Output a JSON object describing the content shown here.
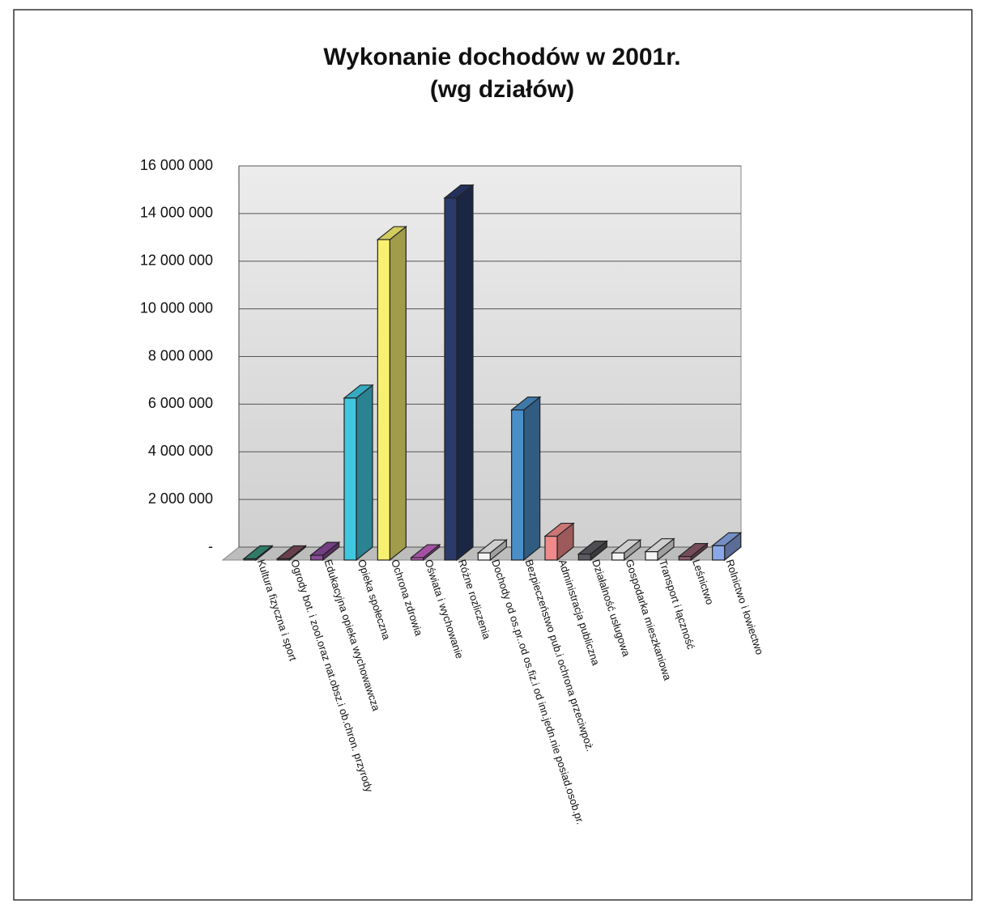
{
  "chart_data": {
    "type": "bar3d",
    "title": "Wykonanie dochodów w 2001r.",
    "subtitle": "(wg działów)",
    "categories": [
      "Kultura fizyczna i sport",
      "Ogrody bot. i zool.oraz nat.obsz.i ob.chron. przyrody",
      "Edukacyjna opieka wychowawcza",
      "Opieka społeczna",
      "Ochrona zdrowia",
      "Oświata i wychowanie",
      "Różne rozliczenia",
      "Dochody od os.pr..od os.fiz.i od inn.jedn.nie posiad.osob.pr.",
      "Bezpieczeństwo pub.i ochrona przeciwpoż.",
      "Administracja publiczna",
      "Działalność usługowa",
      "Gospodarka mieszkaniowa",
      "Transport i łączność",
      "Leśnictwo",
      "Rolnictwo i łowiectwo"
    ],
    "values": [
      50000,
      50000,
      200000,
      6800000,
      13450000,
      100000,
      15200000,
      300000,
      6300000,
      1000000,
      250000,
      300000,
      350000,
      150000,
      600000
    ],
    "colors": [
      "#3a8f7a",
      "#7a4a5a",
      "#8a4a9a",
      "#40c8e0",
      "#f8f070",
      "#c060c0",
      "#2a3a6a",
      "#f4f4f4",
      "#4a8ec8",
      "#f08a8a",
      "#5a5a60",
      "#f4f4f4",
      "#f4f4f4",
      "#8a5a6a",
      "#8aa8e8"
    ],
    "ylim": [
      0,
      16000000
    ],
    "yticks": [
      {
        "value": 0,
        "label": "-"
      },
      {
        "value": 2000000,
        "label": "2 000 000"
      },
      {
        "value": 4000000,
        "label": "4 000 000"
      },
      {
        "value": 6000000,
        "label": "6 000 000"
      },
      {
        "value": 8000000,
        "label": "8 000 000"
      },
      {
        "value": 10000000,
        "label": "10 000 000"
      },
      {
        "value": 12000000,
        "label": "12 000 000"
      },
      {
        "value": 14000000,
        "label": "14 000 000"
      },
      {
        "value": 16000000,
        "label": "16 000 000"
      }
    ],
    "grid": true
  }
}
